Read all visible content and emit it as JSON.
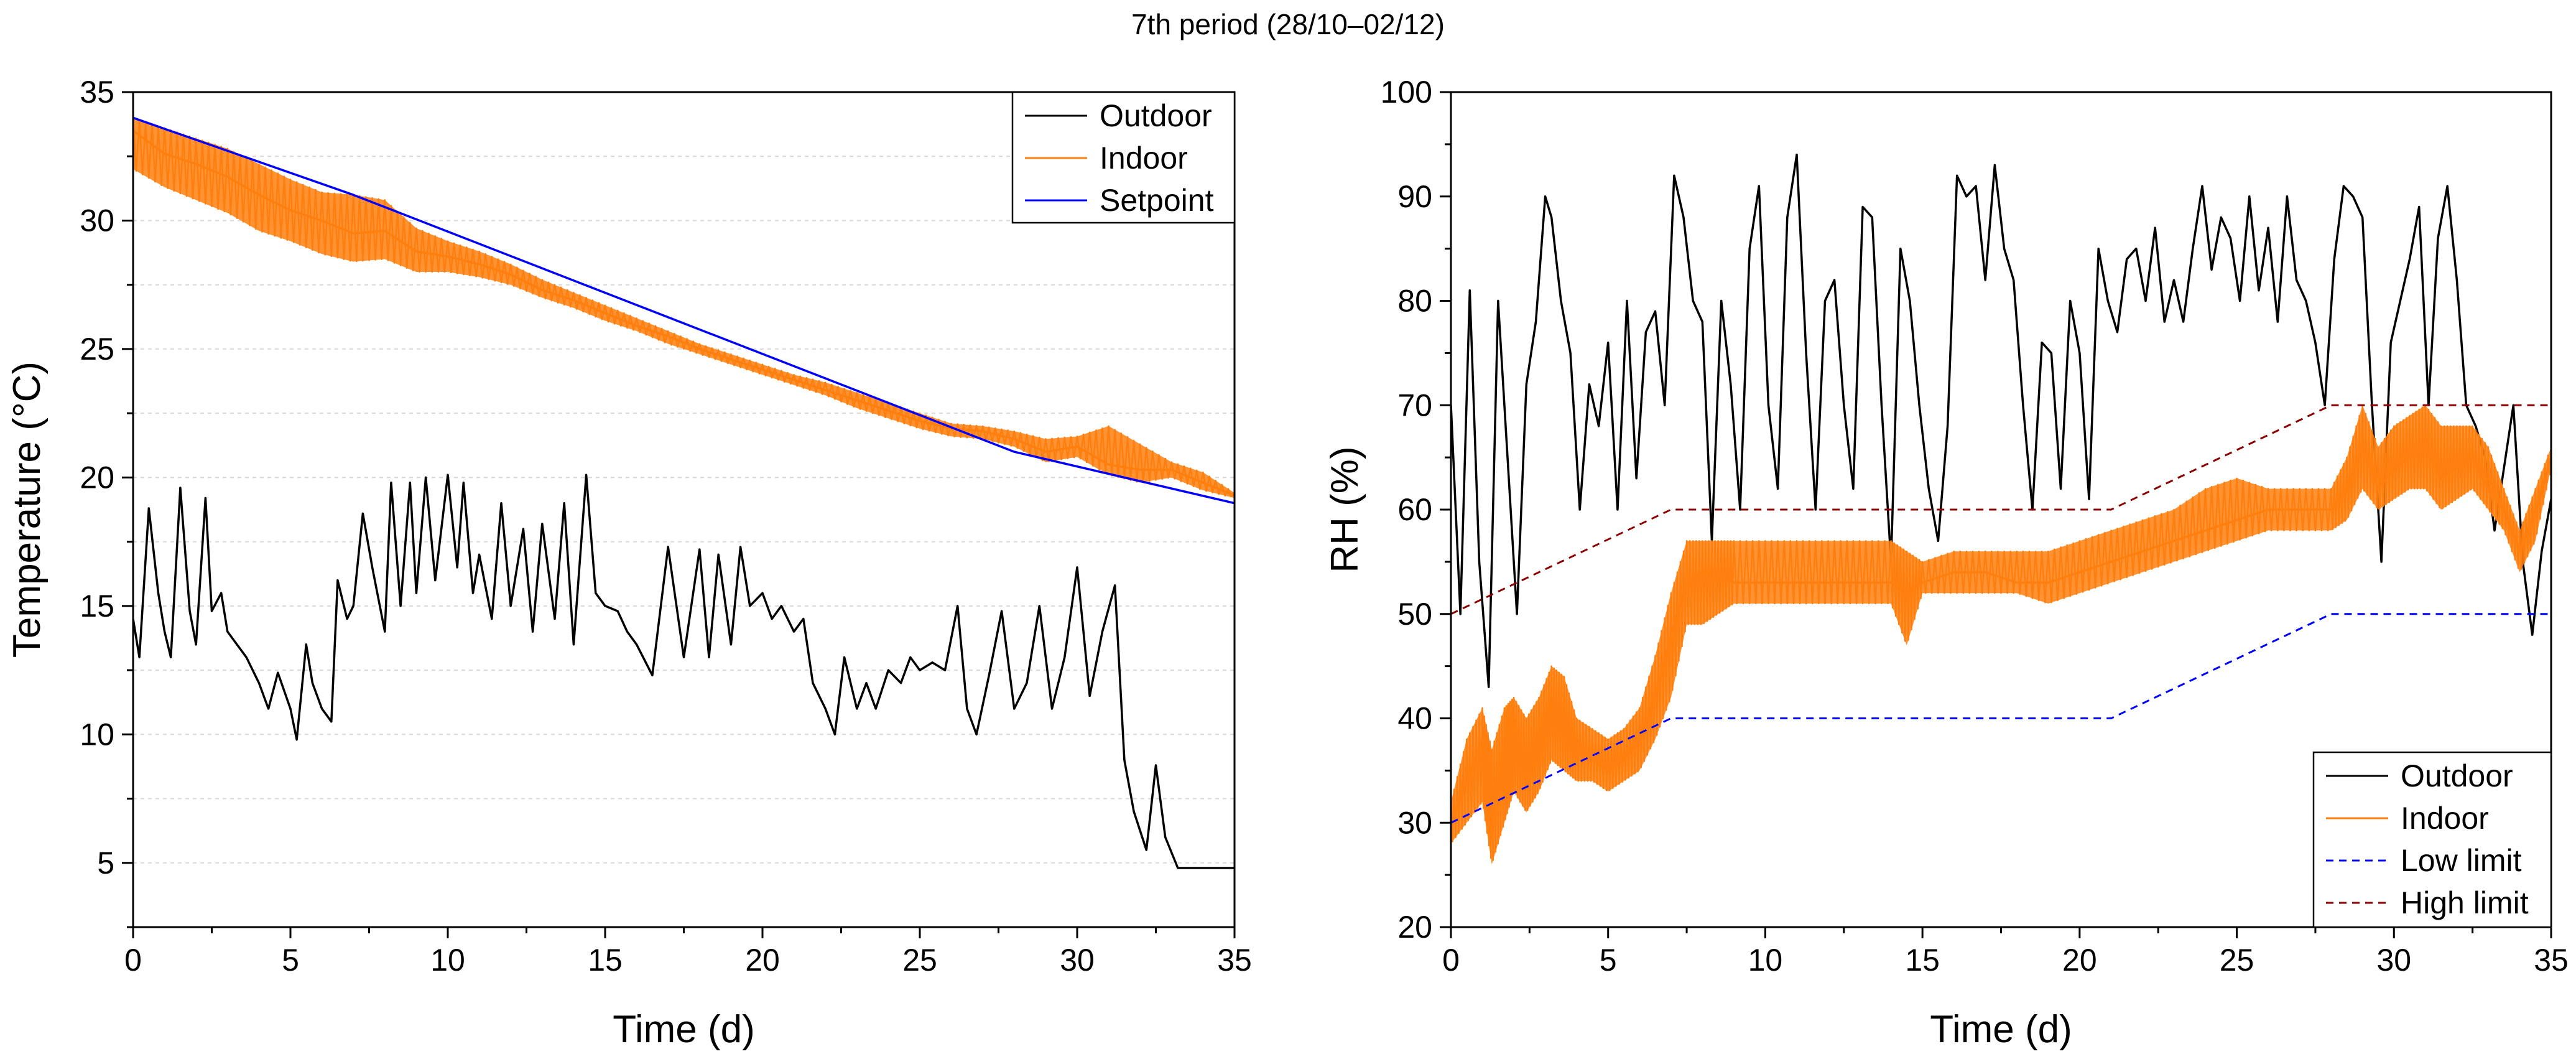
{
  "figure": {
    "title": "7th period (28/10–02/12)"
  },
  "chart_data": [
    {
      "type": "line",
      "xlabel": "Time (d)",
      "ylabel": "Temperature (°C)",
      "xlim": [
        0,
        35
      ],
      "ylim": [
        2.5,
        35
      ],
      "xticks": [
        0,
        5,
        10,
        15,
        20,
        25,
        30,
        35
      ],
      "yticks": [
        5,
        10,
        15,
        20,
        25,
        30,
        35
      ],
      "grid": "horizontal dashed",
      "legend_position": "top-right",
      "series": [
        {
          "name": "Outdoor",
          "color": "#000000",
          "x": [
            0,
            0.2,
            0.5,
            0.8,
            1.0,
            1.2,
            1.5,
            1.8,
            2.0,
            2.3,
            2.5,
            2.8,
            3.0,
            3.3,
            3.6,
            4.0,
            4.3,
            4.6,
            5.0,
            5.2,
            5.5,
            5.7,
            6.0,
            6.3,
            6.5,
            6.8,
            7.0,
            7.3,
            7.6,
            8.0,
            8.2,
            8.5,
            8.8,
            9.0,
            9.3,
            9.6,
            10.0,
            10.3,
            10.5,
            10.8,
            11.0,
            11.4,
            11.7,
            12.0,
            12.4,
            12.7,
            13.0,
            13.4,
            13.7,
            14.0,
            14.4,
            14.7,
            15.0,
            15.4,
            15.7,
            16.0,
            16.5,
            17.0,
            17.5,
            18.0,
            18.3,
            18.6,
            19.0,
            19.3,
            19.6,
            20.0,
            20.3,
            20.6,
            21.0,
            21.3,
            21.6,
            22.0,
            22.3,
            22.6,
            23.0,
            23.3,
            23.6,
            24.0,
            24.4,
            24.7,
            25.0,
            25.4,
            25.8,
            26.2,
            26.5,
            26.8,
            27.2,
            27.6,
            28.0,
            28.4,
            28.8,
            29.2,
            29.6,
            30.0,
            30.4,
            30.8,
            31.2,
            31.5,
            31.8,
            32.2,
            32.5,
            32.8,
            33.2,
            33.5,
            33.8,
            34.2,
            34.5,
            34.8,
            35.0
          ],
          "y": [
            14.5,
            13.0,
            18.8,
            15.5,
            14.0,
            13.0,
            19.6,
            14.8,
            13.5,
            19.2,
            14.8,
            15.5,
            14.0,
            13.5,
            13.0,
            12.0,
            11.0,
            12.4,
            11.0,
            9.8,
            13.5,
            12.0,
            11.0,
            10.5,
            16.0,
            14.5,
            15.0,
            18.6,
            16.5,
            14.0,
            19.8,
            15.0,
            19.8,
            15.5,
            20.0,
            16.0,
            20.1,
            16.5,
            19.8,
            15.5,
            17.0,
            14.5,
            19.0,
            15.0,
            18.0,
            14.0,
            18.2,
            14.5,
            19.0,
            13.5,
            20.1,
            15.5,
            15.0,
            14.8,
            14.0,
            13.5,
            12.3,
            17.3,
            13.0,
            17.2,
            13.0,
            17.0,
            13.5,
            17.3,
            15.0,
            15.5,
            14.5,
            15.0,
            14.0,
            14.5,
            12.0,
            11.0,
            10.0,
            13.0,
            11.0,
            12.0,
            11.0,
            12.5,
            12.0,
            13.0,
            12.5,
            12.8,
            12.5,
            15.0,
            11.0,
            10.0,
            12.3,
            14.8,
            11.0,
            12.0,
            15.0,
            11.0,
            13.0,
            16.5,
            11.5,
            14.0,
            15.8,
            9.0,
            7.0,
            5.5,
            8.8,
            6.0,
            4.8,
            4.8,
            4.8,
            4.8,
            4.8,
            4.8,
            4.8
          ]
        },
        {
          "name": "Indoor",
          "color": "#ff7f0e",
          "x": [
            0,
            1,
            2,
            3,
            4,
            5,
            6,
            7,
            8,
            9,
            10,
            11,
            12,
            13,
            14,
            15,
            16,
            17,
            18,
            19,
            20,
            21,
            22,
            23,
            24,
            25,
            26,
            27,
            28,
            29,
            30,
            31,
            32,
            33,
            34,
            35
          ],
          "y": [
            33.5,
            32.6,
            32.2,
            31.7,
            31.0,
            30.4,
            30.0,
            29.5,
            29.6,
            28.8,
            28.6,
            28.3,
            27.9,
            27.3,
            26.9,
            26.4,
            25.9,
            25.5,
            25.0,
            24.6,
            24.2,
            23.8,
            23.4,
            23.0,
            22.6,
            22.2,
            21.9,
            21.8,
            21.5,
            21.0,
            21.2,
            20.5,
            20.3,
            20.3,
            19.8,
            19.3
          ],
          "band_low": [
            32.0,
            31.3,
            30.8,
            30.3,
            29.6,
            29.2,
            28.7,
            28.4,
            28.5,
            28.0,
            28.0,
            27.8,
            27.5,
            27.0,
            26.6,
            26.1,
            25.7,
            25.2,
            24.8,
            24.4,
            24.0,
            23.6,
            23.2,
            22.7,
            22.3,
            21.9,
            21.6,
            21.5,
            21.2,
            20.6,
            20.8,
            20.1,
            19.8,
            20.0,
            19.5,
            19.2
          ],
          "band_high": [
            34.0,
            33.6,
            33.2,
            32.8,
            32.2,
            31.6,
            31.1,
            31.0,
            30.8,
            29.7,
            29.2,
            28.8,
            28.3,
            27.7,
            27.2,
            26.7,
            26.2,
            25.7,
            25.2,
            24.8,
            24.4,
            24.0,
            23.7,
            23.3,
            22.9,
            22.5,
            22.1,
            22.0,
            21.8,
            21.5,
            21.6,
            22.0,
            21.3,
            20.6,
            20.2,
            19.4
          ]
        },
        {
          "name": "Setpoint",
          "color": "#0000ff",
          "x": [
            0,
            7,
            28,
            35
          ],
          "y": [
            34,
            31,
            21,
            19
          ]
        }
      ]
    },
    {
      "type": "line",
      "xlabel": "Time (d)",
      "ylabel": "RH (%)",
      "xlim": [
        0,
        35
      ],
      "ylim": [
        20,
        100
      ],
      "xticks": [
        0,
        5,
        10,
        15,
        20,
        25,
        30,
        35
      ],
      "yticks": [
        20,
        30,
        40,
        50,
        60,
        70,
        80,
        90,
        100
      ],
      "grid": "none",
      "legend_position": "bottom-right",
      "series": [
        {
          "name": "Outdoor",
          "color": "#000000",
          "x": [
            0,
            0.3,
            0.6,
            0.9,
            1.2,
            1.5,
            1.8,
            2.1,
            2.4,
            2.7,
            3.0,
            3.2,
            3.5,
            3.8,
            4.1,
            4.4,
            4.7,
            5.0,
            5.3,
            5.6,
            5.9,
            6.2,
            6.5,
            6.8,
            7.1,
            7.4,
            7.7,
            8.0,
            8.3,
            8.6,
            8.9,
            9.2,
            9.5,
            9.8,
            10.1,
            10.4,
            10.7,
            11.0,
            11.3,
            11.6,
            11.9,
            12.2,
            12.5,
            12.8,
            13.1,
            13.4,
            13.7,
            14.0,
            14.3,
            14.6,
            14.9,
            15.2,
            15.5,
            15.8,
            16.1,
            16.4,
            16.7,
            17.0,
            17.3,
            17.6,
            17.9,
            18.2,
            18.5,
            18.8,
            19.1,
            19.4,
            19.7,
            20.0,
            20.3,
            20.6,
            20.9,
            21.2,
            21.5,
            21.8,
            22.1,
            22.4,
            22.7,
            23.0,
            23.3,
            23.6,
            23.9,
            24.2,
            24.5,
            24.8,
            25.1,
            25.4,
            25.7,
            26.0,
            26.3,
            26.6,
            26.9,
            27.2,
            27.5,
            27.8,
            28.1,
            28.4,
            28.7,
            29.0,
            29.3,
            29.6,
            29.9,
            30.2,
            30.5,
            30.8,
            31.1,
            31.4,
            31.7,
            32.0,
            32.3,
            32.6,
            32.9,
            33.2,
            33.5,
            33.8,
            34.1,
            34.4,
            34.7,
            35.0
          ],
          "y": [
            70,
            50,
            81,
            55,
            43,
            80,
            65,
            50,
            72,
            78,
            90,
            88,
            80,
            75,
            60,
            72,
            68,
            76,
            60,
            80,
            63,
            77,
            79,
            70,
            92,
            88,
            80,
            78,
            57,
            80,
            72,
            60,
            85,
            91,
            70,
            62,
            88,
            94,
            75,
            60,
            80,
            82,
            70,
            62,
            89,
            88,
            70,
            55,
            85,
            80,
            70,
            62,
            57,
            68,
            92,
            90,
            91,
            82,
            93,
            85,
            82,
            70,
            60,
            76,
            75,
            62,
            80,
            75,
            61,
            85,
            80,
            77,
            84,
            85,
            80,
            87,
            78,
            82,
            78,
            85,
            91,
            83,
            88,
            86,
            80,
            90,
            81,
            87,
            78,
            90,
            82,
            80,
            76,
            70,
            84,
            91,
            90,
            88,
            70,
            55,
            76,
            80,
            84,
            89,
            70,
            86,
            91,
            82,
            70,
            68,
            65,
            58,
            64,
            70,
            55,
            48,
            56,
            61
          ],
          "band_low": null
        },
        {
          "name": "Indoor",
          "color": "#ff7f0e",
          "x": [
            0,
            0.5,
            1.0,
            1.3,
            1.7,
            2.0,
            2.4,
            2.8,
            3.2,
            3.6,
            4.0,
            4.5,
            5.0,
            5.5,
            6.0,
            6.5,
            7.0,
            7.5,
            8.0,
            8.5,
            9.0,
            10.0,
            11.0,
            12.0,
            13.0,
            14.0,
            14.5,
            15.0,
            16.0,
            17.0,
            18.0,
            19.0,
            20.0,
            21.0,
            22.0,
            23.0,
            24.0,
            25.0,
            26.0,
            27.0,
            28.0,
            28.5,
            29.0,
            29.5,
            30.0,
            30.5,
            31.0,
            31.5,
            32.0,
            32.5,
            33.0,
            33.5,
            34.0,
            34.5,
            35.0
          ],
          "y": [
            30,
            34,
            38,
            31,
            37,
            40,
            35,
            38,
            42,
            40,
            38,
            36,
            35,
            36,
            38,
            42,
            48,
            53,
            54,
            54,
            53,
            53,
            53,
            53,
            53,
            53,
            52,
            53,
            54,
            54,
            53,
            53,
            54,
            55,
            56,
            57,
            58,
            59,
            60,
            60,
            60,
            62,
            66,
            62,
            64,
            65,
            66,
            63,
            64,
            65,
            62,
            60,
            56,
            60,
            65
          ],
          "band_low": [
            28,
            30,
            32,
            26,
            30,
            33,
            31,
            33,
            36,
            35,
            34,
            34,
            33,
            34,
            35,
            38,
            42,
            49,
            49,
            50,
            51,
            51,
            51,
            51,
            51,
            51,
            47,
            52,
            52,
            52,
            52,
            51,
            52,
            53,
            54,
            55,
            56,
            57,
            58,
            58,
            58,
            59,
            62,
            60,
            61,
            62,
            62,
            60,
            61,
            62,
            60,
            58,
            54,
            57,
            64
          ],
          "band_high": [
            32,
            38,
            41,
            37,
            41,
            42,
            40,
            42,
            45,
            44,
            40,
            39,
            38,
            39,
            41,
            46,
            52,
            57,
            57,
            57,
            57,
            57,
            57,
            57,
            57,
            57,
            56,
            55,
            56,
            56,
            56,
            56,
            57,
            58,
            59,
            60,
            62,
            63,
            62,
            62,
            62,
            65,
            70,
            66,
            68,
            69,
            70,
            68,
            68,
            68,
            66,
            62,
            58,
            62,
            66
          ]
        },
        {
          "name": "Low limit",
          "color": "#0000ff",
          "dashed": true,
          "x": [
            0,
            7,
            21,
            28,
            35
          ],
          "y": [
            30,
            40,
            40,
            50,
            50
          ]
        },
        {
          "name": "High limit",
          "color": "#8b0000",
          "dashed": true,
          "x": [
            0,
            7,
            21,
            28,
            35
          ],
          "y": [
            50,
            60,
            60,
            70,
            70
          ]
        }
      ]
    }
  ]
}
